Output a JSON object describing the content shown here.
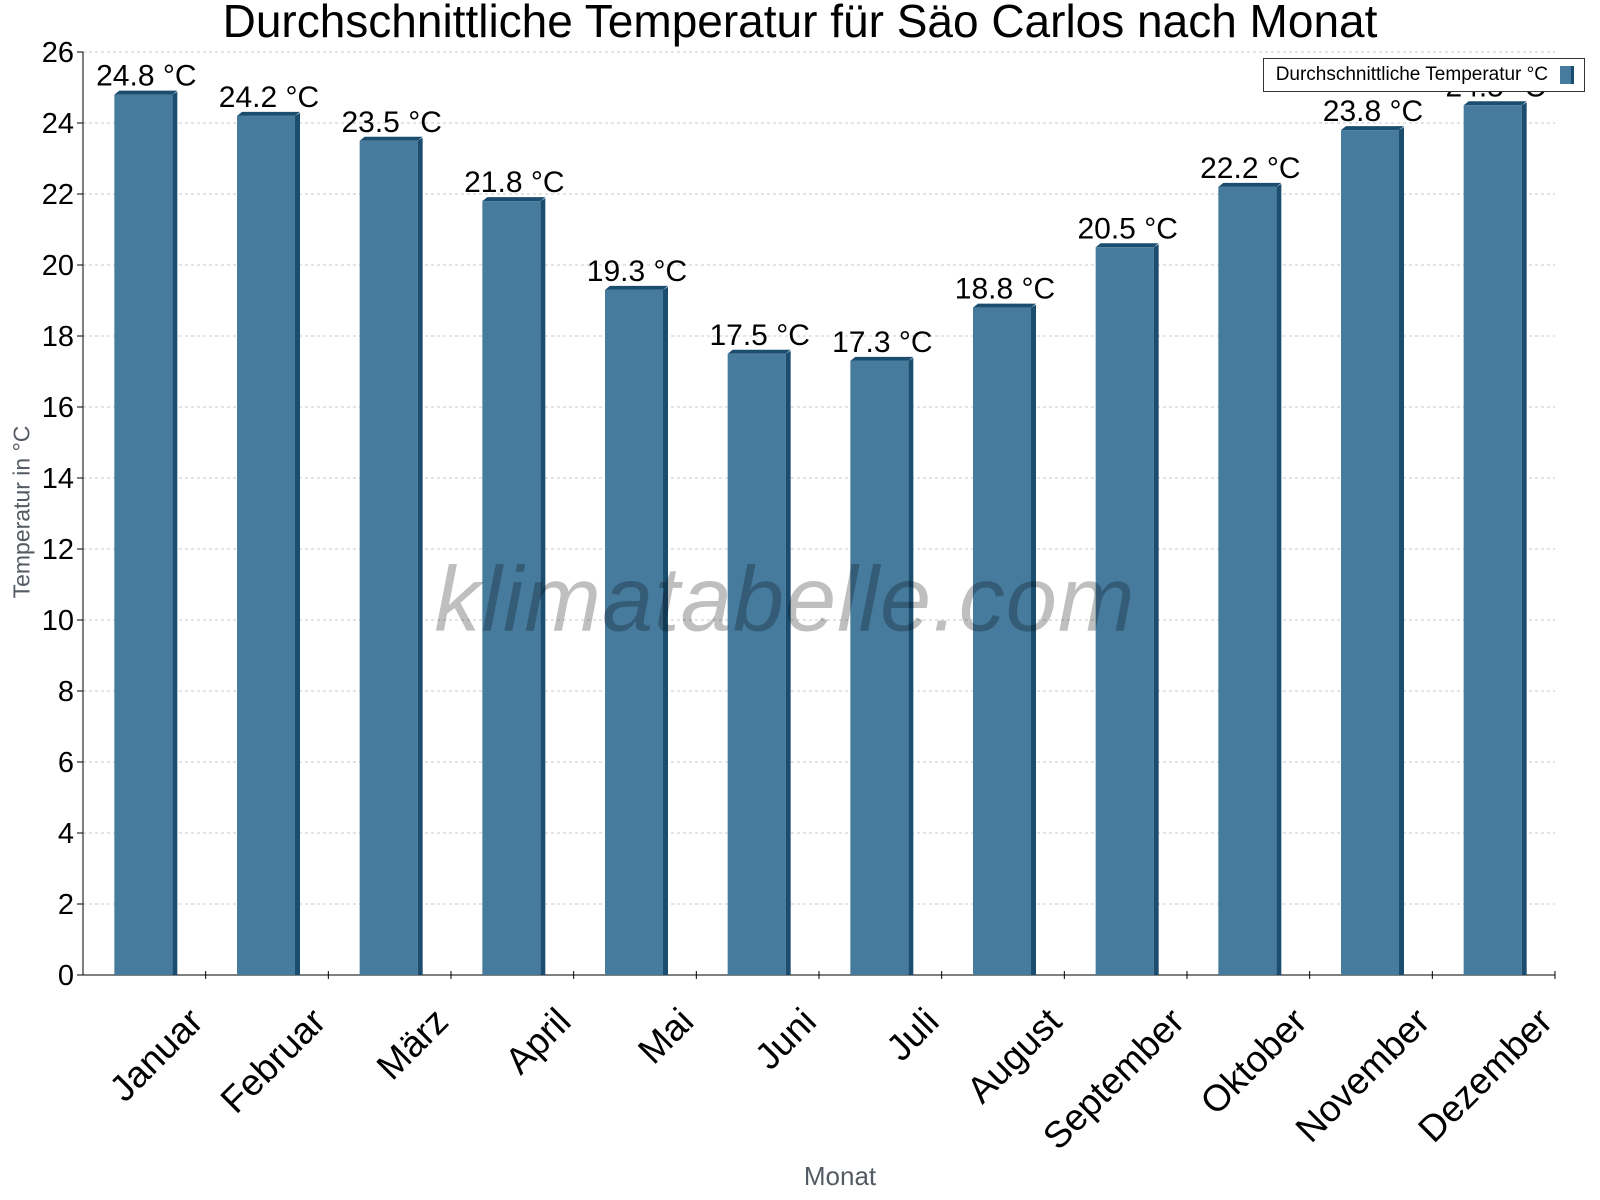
{
  "chart_data": {
    "type": "bar",
    "title": "Durchschnittliche Temperatur für Säo Carlos nach Monat",
    "xlabel": "Monat",
    "ylabel": "Temperatur in °C",
    "ylim": [
      0,
      26
    ],
    "yticks": [
      0,
      2,
      4,
      6,
      8,
      10,
      12,
      14,
      16,
      18,
      20,
      22,
      24,
      26
    ],
    "grid": "horizontal dotted",
    "legend_position": "top-right",
    "categories": [
      "Januar",
      "Februar",
      "März",
      "April",
      "Mai",
      "Juni",
      "Juli",
      "August",
      "September",
      "Oktober",
      "November",
      "Dezember"
    ],
    "series": [
      {
        "name": "Durchschnittliche Temperatur °C",
        "values": [
          24.8,
          24.2,
          23.5,
          21.8,
          19.3,
          17.5,
          17.3,
          18.8,
          20.5,
          22.2,
          23.8,
          24.5
        ],
        "labels": [
          "24.8 °C",
          "24.2 °C",
          "23.5 °C",
          "21.8 °C",
          "19.3 °C",
          "17.5 °C",
          "17.3 °C",
          "18.8 °C",
          "20.5 °C",
          "22.2 °C",
          "23.8 °C",
          "24.5 °C"
        ]
      }
    ],
    "colors": {
      "bar": "#467b9e",
      "bar_edge": "#1b4d6f",
      "grid": "#c8c8c8",
      "axis": "#000000"
    }
  },
  "watermark": "klimatabelle.com"
}
